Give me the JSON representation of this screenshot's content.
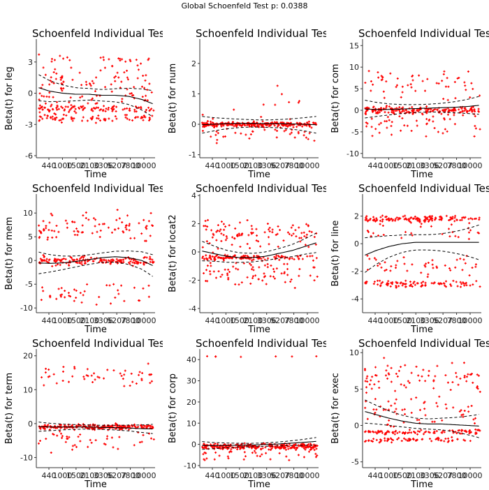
{
  "page_title": "Global Schoenfeld Test p: 0.0388",
  "colors": {
    "points": "#ff0000",
    "line": "#000000",
    "axis": "#333333"
  },
  "chart_data": [
    {
      "type": "scatter",
      "title": "Schoenfeld Individual Test p",
      "xlabel": "Time",
      "ylabel": "Beta(t) for leg",
      "yticks": [
        -6,
        -3,
        0,
        3
      ],
      "ylim": [
        -6.2,
        5.2
      ],
      "xticks": [
        "440",
        "1000",
        "1500",
        "2100",
        "3306",
        "5207",
        "7800",
        "10000"
      ],
      "smooth": [
        0.6,
        0.2,
        0,
        -0.1,
        -0.1,
        -0.2,
        -0.2,
        -0.3,
        -0.6,
        -1.1
      ],
      "band": 0.55,
      "clusters": [
        {
          "c": -1.5,
          "s": 0.25,
          "f": 0.3
        },
        {
          "c": -2.4,
          "s": 0.3,
          "f": 0.25
        },
        {
          "c": 3.3,
          "s": 0.25,
          "f": 0.08
        },
        {
          "c": 0.5,
          "s": 2.5,
          "f": 0.37
        }
      ]
    },
    {
      "type": "scatter",
      "title": "Schoenfeld Individual Test p",
      "xlabel": "Time",
      "ylabel": "Beta(t) for num",
      "yticks": [
        -1,
        0,
        1,
        2
      ],
      "ylim": [
        -1.1,
        2.8
      ],
      "xticks": [
        "440",
        "1000",
        "1500",
        "2100",
        "3306",
        "5207",
        "7800",
        "10000"
      ],
      "smooth": [
        -0.02,
        0,
        0.02,
        0.03,
        0.03,
        0.02,
        0.02,
        0.01,
        0,
        -0.02
      ],
      "band": 0.12,
      "clusters": [
        {
          "c": 0,
          "s": 0.07,
          "f": 0.75
        },
        {
          "c": -0.2,
          "s": 0.3,
          "f": 0.2
        },
        {
          "c": 0.6,
          "s": 0.5,
          "f": 0.05
        }
      ]
    },
    {
      "type": "scatter",
      "title": "Schoenfeld Individual Test p",
      "xlabel": "Time",
      "ylabel": "Beta(t) for com",
      "yticks": [
        -10,
        -5,
        0,
        5,
        10,
        15
      ],
      "ylim": [
        -11,
        16.5
      ],
      "xticks": [
        "440",
        "1000",
        "1500",
        "2100",
        "3306",
        "5207",
        "7800",
        "10000"
      ],
      "smooth": [
        0.3,
        0.2,
        0.2,
        0.3,
        0.4,
        0.5,
        0.6,
        0.7,
        0.9,
        1.2
      ],
      "band": 0.9,
      "clusters": [
        {
          "c": 0,
          "s": 0.7,
          "f": 0.6
        },
        {
          "c": -3,
          "s": 2.5,
          "f": 0.2
        },
        {
          "c": 6,
          "s": 3,
          "f": 0.2
        }
      ]
    },
    {
      "type": "scatter",
      "title": "Schoenfeld Individual Test p",
      "xlabel": "Time",
      "ylabel": "Beta(t) for mem",
      "yticks": [
        -10,
        -5,
        0,
        5,
        10
      ],
      "ylim": [
        -11,
        14
      ],
      "xticks": [
        "440",
        "1000",
        "1500",
        "2100",
        "3306",
        "5207",
        "7800",
        "10000"
      ],
      "smooth": [
        -0.5,
        -0.6,
        -0.5,
        -0.2,
        0.2,
        0.6,
        0.8,
        0.6,
        0,
        -1.3
      ],
      "band": 1.0,
      "clusters": [
        {
          "c": 0,
          "s": 0.8,
          "f": 0.6
        },
        {
          "c": -7,
          "s": 2,
          "f": 0.18
        },
        {
          "c": 7,
          "s": 2.5,
          "f": 0.22
        }
      ]
    },
    {
      "type": "scatter",
      "title": "Schoenfeld Individual Test p",
      "xlabel": "Time",
      "ylabel": "Beta(t) for locat2",
      "yticks": [
        -4,
        -2,
        0,
        2,
        4
      ],
      "ylim": [
        -4.3,
        4.1
      ],
      "xticks": [
        "440",
        "1000",
        "1500",
        "2100",
        "3306",
        "5207",
        "7800",
        "10000"
      ],
      "smooth": [
        0.1,
        -0.1,
        -0.3,
        -0.4,
        -0.4,
        -0.3,
        -0.1,
        0.1,
        0.4,
        0.7
      ],
      "band": 0.3,
      "clusters": [
        {
          "c": -0.4,
          "s": 0.15,
          "f": 0.35
        },
        {
          "c": -1.5,
          "s": 1.0,
          "f": 0.3
        },
        {
          "c": 1.3,
          "s": 0.9,
          "f": 0.35
        }
      ]
    },
    {
      "type": "scatter",
      "title": "Schoenfeld Individual Test p",
      "xlabel": "Time",
      "ylabel": "Beta(t) for line",
      "yticks": [
        -4,
        -2,
        0,
        2
      ],
      "ylim": [
        -5,
        3.6
      ],
      "xticks": [
        "440",
        "1000",
        "1500",
        "2100",
        "3306",
        "5207",
        "7800",
        "10000"
      ],
      "smooth": [
        -0.9,
        -0.5,
        -0.2,
        0,
        0.1,
        0.1,
        0.1,
        0.1,
        0.1,
        0.1
      ],
      "band": 0.55,
      "clusters": [
        {
          "c": 1.8,
          "s": 0.2,
          "f": 0.42
        },
        {
          "c": -2.9,
          "s": 0.2,
          "f": 0.33
        },
        {
          "c": 0.9,
          "s": 0.6,
          "f": 0.1
        },
        {
          "c": -1.6,
          "s": 0.7,
          "f": 0.15
        }
      ]
    },
    {
      "type": "scatter",
      "title": "Schoenfeld Individual Test p",
      "xlabel": "Time",
      "ylabel": "Beta(t) for term",
      "yticks": [
        -10,
        0,
        10,
        20
      ],
      "ylim": [
        -13,
        22
      ],
      "xticks": [
        "440",
        "1000",
        "1500",
        "2100",
        "3306",
        "5207",
        "7800",
        "10000"
      ],
      "smooth": [
        -0.9,
        -1.0,
        -1.0,
        -1.0,
        -1.0,
        -1.1,
        -1.2,
        -1.3,
        -1.5,
        -1.6
      ],
      "band": 0.6,
      "clusters": [
        {
          "c": -1,
          "s": 0.7,
          "f": 0.68
        },
        {
          "c": -4,
          "s": 3,
          "f": 0.17
        },
        {
          "c": 14,
          "s": 3,
          "f": 0.15
        }
      ]
    },
    {
      "type": "scatter",
      "title": "Schoenfeld Individual Test p",
      "xlabel": "Time",
      "ylabel": "Beta(t) for corp",
      "yticks": [
        -10,
        0,
        10,
        20,
        30,
        40
      ],
      "ylim": [
        -11,
        45
      ],
      "xticks": [
        "440",
        "1000",
        "1500",
        "2100",
        "3306",
        "5207",
        "7800",
        "10000"
      ],
      "smooth": [
        -0.5,
        -0.6,
        -0.5,
        -0.4,
        -0.3,
        -0.1,
        0.2,
        0.6,
        1.0,
        1.5
      ],
      "band": 0.8,
      "clusters": [
        {
          "c": -1,
          "s": 1.2,
          "f": 0.9
        },
        {
          "c": -5,
          "s": 2,
          "f": 0.08
        },
        {
          "c": 41.5,
          "s": 0.3,
          "f": 0.02
        }
      ]
    },
    {
      "type": "scatter",
      "title": "Schoenfeld Individual Test p",
      "xlabel": "Time",
      "ylabel": "Beta(t) for exec",
      "yticks": [
        -5,
        0,
        5,
        10
      ],
      "ylim": [
        -5.8,
        10.5
      ],
      "xticks": [
        "440",
        "1000",
        "1500",
        "2100",
        "3306",
        "5207",
        "7800",
        "10000"
      ],
      "smooth": [
        2.0,
        1.5,
        1.0,
        0.6,
        0.3,
        0.2,
        0.2,
        0.1,
        0.0,
        -0.1
      ],
      "band": 0.7,
      "clusters": [
        {
          "c": -0.9,
          "s": 0.25,
          "f": 0.35
        },
        {
          "c": -2.0,
          "s": 0.3,
          "f": 0.2
        },
        {
          "c": 6.5,
          "s": 1.8,
          "f": 0.25
        },
        {
          "c": 2,
          "s": 2,
          "f": 0.2
        }
      ]
    }
  ]
}
